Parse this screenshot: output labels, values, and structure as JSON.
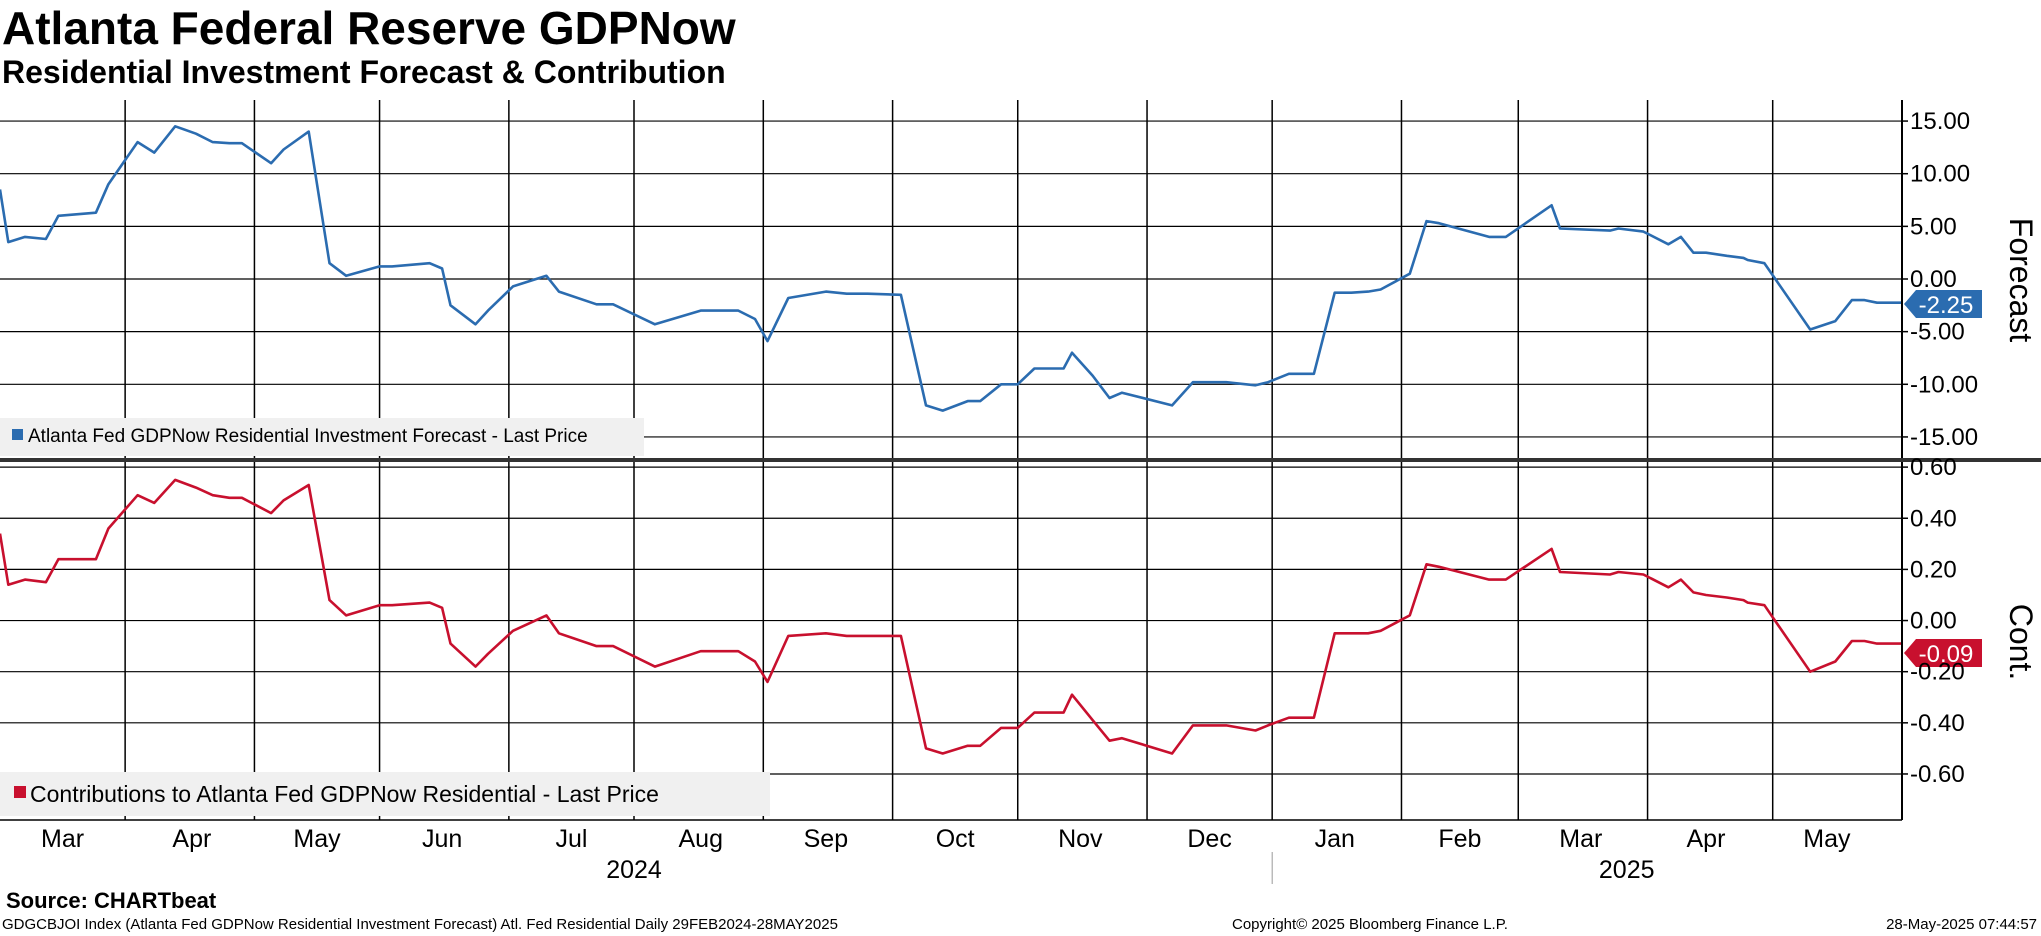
{
  "title": "Atlanta Federal Reserve GDPNow",
  "subtitle": "Residential Investment Forecast & Contribution",
  "source": "Source: CHARTbeat",
  "footer": {
    "left": "GDGCBJOI Index (Atlanta Fed GDPNow Residential Investment Forecast) Atl. Fed Residential  Daily 29FEB2024-28MAY2025",
    "center": "Copyright© 2025 Bloomberg Finance L.P.",
    "right": "28-May-2025 07:44:57"
  },
  "colors": {
    "forecast": "#2b6cb0",
    "contribution": "#c8102e",
    "grid": "#000000",
    "legend_bg": "#f0f0f0"
  },
  "chart_data": [
    {
      "type": "line",
      "panel": "top",
      "ylabel": "Forecast",
      "ylim": [
        -17.0,
        17.0
      ],
      "yticks": [
        "15.00",
        "10.00",
        "5.00",
        "0.00",
        "-5.00",
        "-10.00",
        "-15.00"
      ],
      "ytick_values": [
        15,
        10,
        5,
        0,
        -5,
        -10,
        -15
      ],
      "xlim": [
        0,
        456
      ],
      "legend": "Atlanta Fed GDPNow Residential Investment Forecast - Last Price",
      "last_value_label": "-2.25",
      "series": [
        {
          "name": "Atlanta Fed GDPNow Residential Investment Forecast - Last Price",
          "x": [
            0,
            2,
            6,
            11,
            14,
            23,
            26,
            33,
            37,
            42,
            47,
            51,
            55,
            58,
            65,
            68,
            74,
            79,
            83,
            91,
            94,
            103,
            106,
            108,
            114,
            117,
            123,
            131,
            134,
            143,
            147,
            157,
            168,
            171,
            177,
            181,
            184,
            189,
            198,
            203,
            208,
            216,
            222,
            226,
            232,
            235,
            240,
            244,
            248,
            255,
            257,
            262,
            266,
            269,
            281,
            286,
            291,
            294,
            301,
            304,
            309,
            315,
            320,
            324,
            328,
            331,
            338,
            342,
            345,
            357,
            361,
            372,
            374,
            386,
            388,
            394,
            400,
            403,
            406,
            409,
            414,
            418,
            419,
            423,
            434,
            440,
            444,
            447,
            450,
            453,
            456
          ],
          "y": [
            8.5,
            3.5,
            4.0,
            3.8,
            6.0,
            6.3,
            9.0,
            13.0,
            12.0,
            14.5,
            13.8,
            13.0,
            12.9,
            12.9,
            11.0,
            12.3,
            14.0,
            1.5,
            0.3,
            1.2,
            1.2,
            1.5,
            1.0,
            -2.5,
            -4.3,
            -3.0,
            -0.7,
            0.3,
            -1.2,
            -2.4,
            -2.4,
            -4.3,
            -3.0,
            -3.0,
            -3.0,
            -3.8,
            -5.9,
            -1.8,
            -1.2,
            -1.4,
            -1.4,
            -1.5,
            -12.0,
            -12.5,
            -11.6,
            -11.6,
            -10.0,
            -10.0,
            -8.5,
            -8.5,
            -7.0,
            -9.2,
            -11.3,
            -10.8,
            -12.0,
            -9.8,
            -9.8,
            -9.8,
            -10.1,
            -9.8,
            -9.0,
            -9.0,
            -1.3,
            -1.3,
            -1.2,
            -1.0,
            0.5,
            5.5,
            5.3,
            4.0,
            4.0,
            7.0,
            4.8,
            4.6,
            4.8,
            4.5,
            3.3,
            4.0,
            2.5,
            2.5,
            2.2,
            2.0,
            1.8,
            1.5,
            -4.8,
            -4.0,
            -2.0,
            -2.0,
            -2.25,
            -2.25,
            -2.25
          ]
        }
      ]
    },
    {
      "type": "line",
      "panel": "bottom",
      "ylabel": "Cont.",
      "ylim": [
        -0.78,
        0.62
      ],
      "yticks": [
        "0.60",
        "0.40",
        "0.20",
        "0.00",
        "-0.20",
        "-0.40",
        "-0.60"
      ],
      "ytick_values": [
        0.6,
        0.4,
        0.2,
        0,
        -0.2,
        -0.4,
        -0.6
      ],
      "xlim": [
        0,
        456
      ],
      "legend": "Contributions to Atlanta Fed GDPNow Residential - Last Price",
      "last_value_label": "-0.09",
      "series": [
        {
          "name": "Contributions to Atlanta Fed GDPNow Residential - Last Price",
          "x": [
            0,
            2,
            6,
            11,
            14,
            23,
            26,
            33,
            37,
            42,
            47,
            51,
            55,
            58,
            65,
            68,
            74,
            79,
            83,
            91,
            94,
            103,
            106,
            108,
            114,
            117,
            123,
            131,
            134,
            143,
            147,
            157,
            168,
            171,
            177,
            181,
            184,
            189,
            198,
            203,
            208,
            216,
            222,
            226,
            232,
            235,
            240,
            244,
            248,
            255,
            257,
            262,
            266,
            269,
            281,
            286,
            291,
            294,
            301,
            304,
            309,
            315,
            320,
            324,
            328,
            331,
            338,
            342,
            345,
            357,
            361,
            372,
            374,
            386,
            388,
            394,
            400,
            403,
            406,
            409,
            414,
            418,
            419,
            423,
            434,
            440,
            444,
            447,
            450,
            453,
            456
          ],
          "y": [
            0.34,
            0.14,
            0.16,
            0.15,
            0.24,
            0.24,
            0.36,
            0.49,
            0.46,
            0.55,
            0.52,
            0.49,
            0.48,
            0.48,
            0.42,
            0.47,
            0.53,
            0.08,
            0.02,
            0.06,
            0.06,
            0.07,
            0.05,
            -0.09,
            -0.18,
            -0.13,
            -0.04,
            0.02,
            -0.05,
            -0.1,
            -0.1,
            -0.18,
            -0.12,
            -0.12,
            -0.12,
            -0.16,
            -0.24,
            -0.06,
            -0.05,
            -0.06,
            -0.06,
            -0.06,
            -0.5,
            -0.52,
            -0.49,
            -0.49,
            -0.42,
            -0.42,
            -0.36,
            -0.36,
            -0.29,
            -0.39,
            -0.47,
            -0.46,
            -0.52,
            -0.41,
            -0.41,
            -0.41,
            -0.43,
            -0.41,
            -0.38,
            -0.38,
            -0.05,
            -0.05,
            -0.05,
            -0.04,
            0.02,
            0.22,
            0.21,
            0.16,
            0.16,
            0.28,
            0.19,
            0.18,
            0.19,
            0.18,
            0.13,
            0.16,
            0.11,
            0.1,
            0.09,
            0.08,
            0.07,
            0.06,
            -0.2,
            -0.16,
            -0.08,
            -0.08,
            -0.09,
            -0.09,
            -0.09
          ]
        }
      ]
    }
  ],
  "x_axis": {
    "months": [
      "Mar",
      "Apr",
      "May",
      "Jun",
      "Jul",
      "Aug",
      "Sep",
      "Oct",
      "Nov",
      "Dec",
      "Jan",
      "Feb",
      "Mar",
      "Apr",
      "May"
    ],
    "month_centers": [
      15,
      46,
      76,
      106,
      137,
      168,
      198,
      229,
      259,
      290,
      320,
      350,
      379,
      409,
      438
    ],
    "month_boundaries": [
      0,
      30,
      61,
      91,
      122,
      152,
      183,
      214,
      244,
      275,
      305,
      336,
      364,
      395,
      425
    ],
    "years": [
      "2024",
      "2025"
    ],
    "year_centers": [
      152,
      390
    ],
    "year_separator": 305
  }
}
